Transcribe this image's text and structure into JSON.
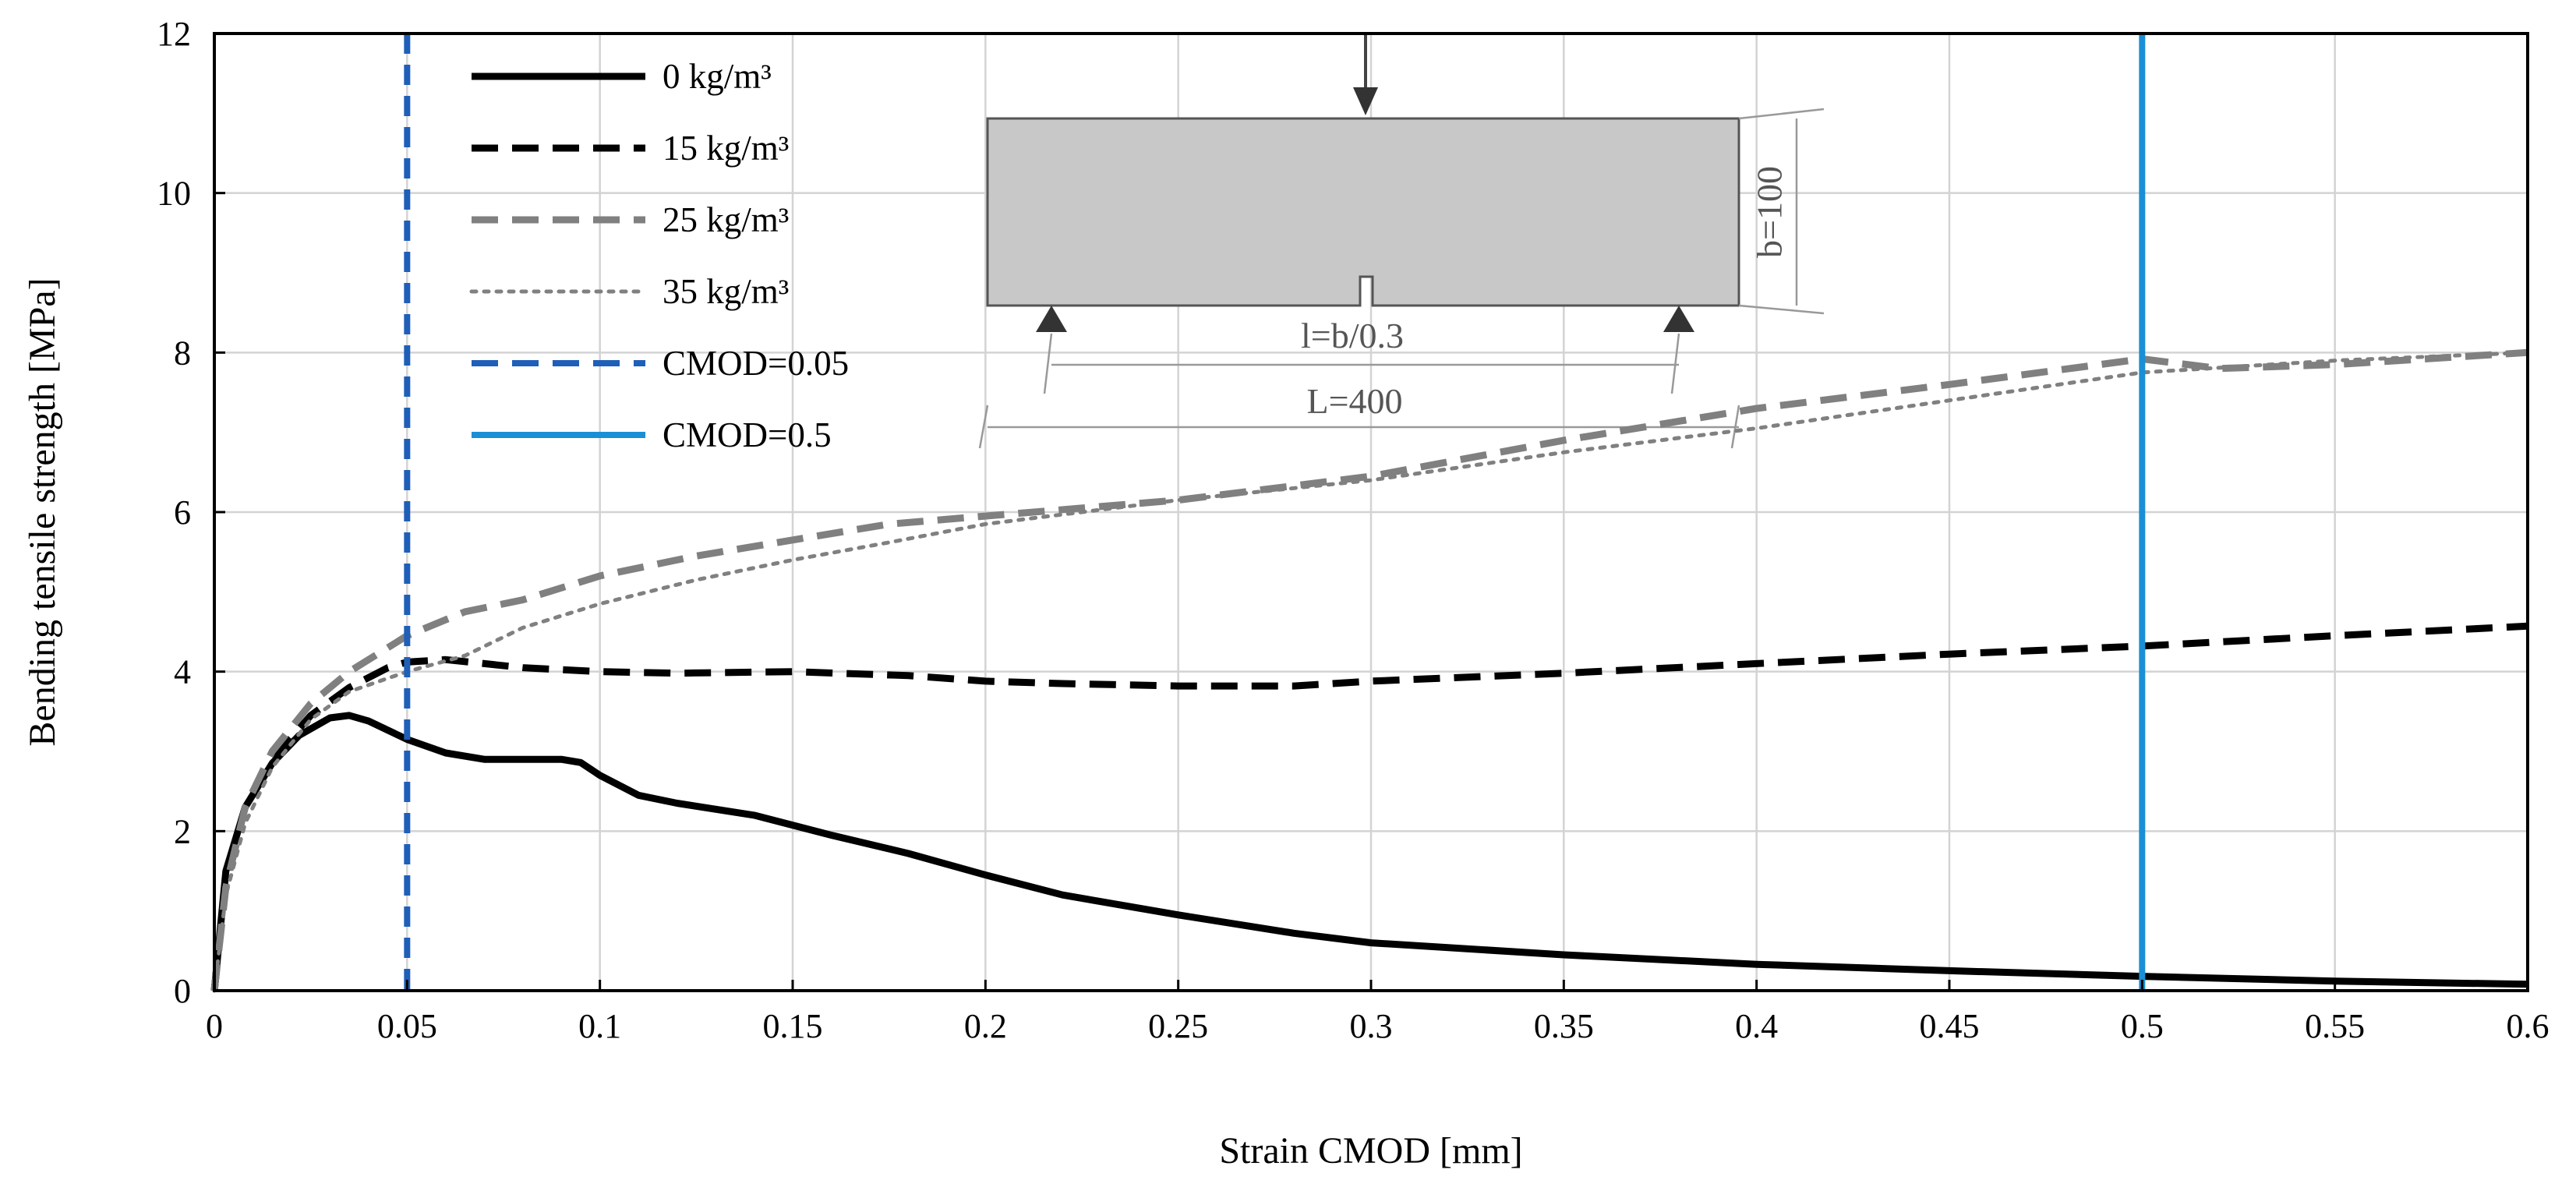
{
  "chart_data": {
    "type": "line",
    "xlabel": "Strain CMOD [mm]",
    "ylabel": "Bending tensile strength [MPa]",
    "xlim": [
      0,
      0.6
    ],
    "ylim": [
      0,
      12
    ],
    "grid": true,
    "legend_position": "top-left",
    "x_ticks": [
      0,
      0.05,
      0.1,
      0.15,
      0.2,
      0.25,
      0.3,
      0.35,
      0.4,
      0.45,
      0.5,
      0.55,
      0.6
    ],
    "x_tick_labels": [
      "0",
      "0.05",
      "0.1",
      "0.15",
      "0.2",
      "0.25",
      "0.3",
      "0.35",
      "0.4",
      "0.45",
      "0.5",
      "0.55",
      "0.6"
    ],
    "y_ticks": [
      0,
      2,
      4,
      6,
      8,
      10,
      12
    ],
    "y_tick_labels": [
      "0",
      "2",
      "4",
      "6",
      "8",
      "10",
      "12"
    ],
    "series": [
      {
        "name": "0 kg/m³",
        "color": "#000000",
        "style": "solid",
        "x": [
          0,
          0.003,
          0.008,
          0.015,
          0.022,
          0.03,
          0.035,
          0.04,
          0.05,
          0.06,
          0.07,
          0.08,
          0.09,
          0.095,
          0.1,
          0.11,
          0.12,
          0.14,
          0.16,
          0.18,
          0.2,
          0.22,
          0.25,
          0.28,
          0.3,
          0.35,
          0.4,
          0.45,
          0.5,
          0.55,
          0.6
        ],
        "y": [
          0,
          1.5,
          2.3,
          2.85,
          3.2,
          3.42,
          3.45,
          3.38,
          3.15,
          2.98,
          2.9,
          2.9,
          2.9,
          2.86,
          2.7,
          2.45,
          2.35,
          2.2,
          1.95,
          1.72,
          1.45,
          1.2,
          0.95,
          0.72,
          0.6,
          0.45,
          0.33,
          0.25,
          0.18,
          0.12,
          0.08
        ]
      },
      {
        "name": "15 kg/m³",
        "color": "#000000",
        "style": "dashed",
        "x": [
          0,
          0.003,
          0.008,
          0.015,
          0.025,
          0.035,
          0.045,
          0.05,
          0.06,
          0.07,
          0.08,
          0.1,
          0.12,
          0.15,
          0.18,
          0.2,
          0.22,
          0.25,
          0.28,
          0.3,
          0.35,
          0.4,
          0.45,
          0.5,
          0.55,
          0.6
        ],
        "y": [
          0,
          1.4,
          2.3,
          2.9,
          3.45,
          3.8,
          4.05,
          4.12,
          4.15,
          4.1,
          4.05,
          4.0,
          3.98,
          4.0,
          3.95,
          3.88,
          3.85,
          3.82,
          3.82,
          3.88,
          3.98,
          4.1,
          4.22,
          4.32,
          4.45,
          4.57
        ]
      },
      {
        "name": "25 kg/m³",
        "color": "#808080",
        "style": "dashed",
        "x": [
          0,
          0.003,
          0.008,
          0.015,
          0.025,
          0.035,
          0.05,
          0.065,
          0.08,
          0.1,
          0.125,
          0.15,
          0.175,
          0.2,
          0.25,
          0.3,
          0.35,
          0.4,
          0.45,
          0.5,
          0.52,
          0.55,
          0.6
        ],
        "y": [
          0,
          1.3,
          2.3,
          3.0,
          3.6,
          4.0,
          4.45,
          4.75,
          4.9,
          5.2,
          5.45,
          5.65,
          5.85,
          5.95,
          6.15,
          6.45,
          6.9,
          7.3,
          7.6,
          7.92,
          7.8,
          7.85,
          8.0
        ]
      },
      {
        "name": "35 kg/m³",
        "color": "#808080",
        "style": "dotted",
        "x": [
          0,
          0.003,
          0.008,
          0.015,
          0.025,
          0.035,
          0.05,
          0.065,
          0.08,
          0.1,
          0.125,
          0.15,
          0.175,
          0.2,
          0.25,
          0.3,
          0.35,
          0.4,
          0.45,
          0.5,
          0.55,
          0.6
        ],
        "y": [
          0,
          1.2,
          2.1,
          2.8,
          3.4,
          3.75,
          4.0,
          4.2,
          4.55,
          4.85,
          5.15,
          5.4,
          5.62,
          5.85,
          6.15,
          6.4,
          6.75,
          7.05,
          7.4,
          7.75,
          7.9,
          8.0
        ]
      }
    ],
    "reference_lines": [
      {
        "name": "CMOD=0.05",
        "x": 0.05,
        "color": "#1f5fb8",
        "style": "dashed"
      },
      {
        "name": "CMOD=0.5",
        "x": 0.5,
        "color": "#1a8fd6",
        "style": "solid"
      }
    ],
    "inset": {
      "height_label": "b=100",
      "span_label": "l=b/0.3",
      "length_label": "L=400"
    }
  }
}
